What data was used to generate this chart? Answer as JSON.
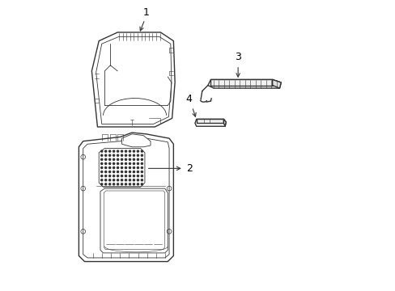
{
  "background_color": "#ffffff",
  "line_color": "#333333",
  "label_color": "#000000",
  "figsize": [
    4.89,
    3.6
  ],
  "dpi": 100
}
